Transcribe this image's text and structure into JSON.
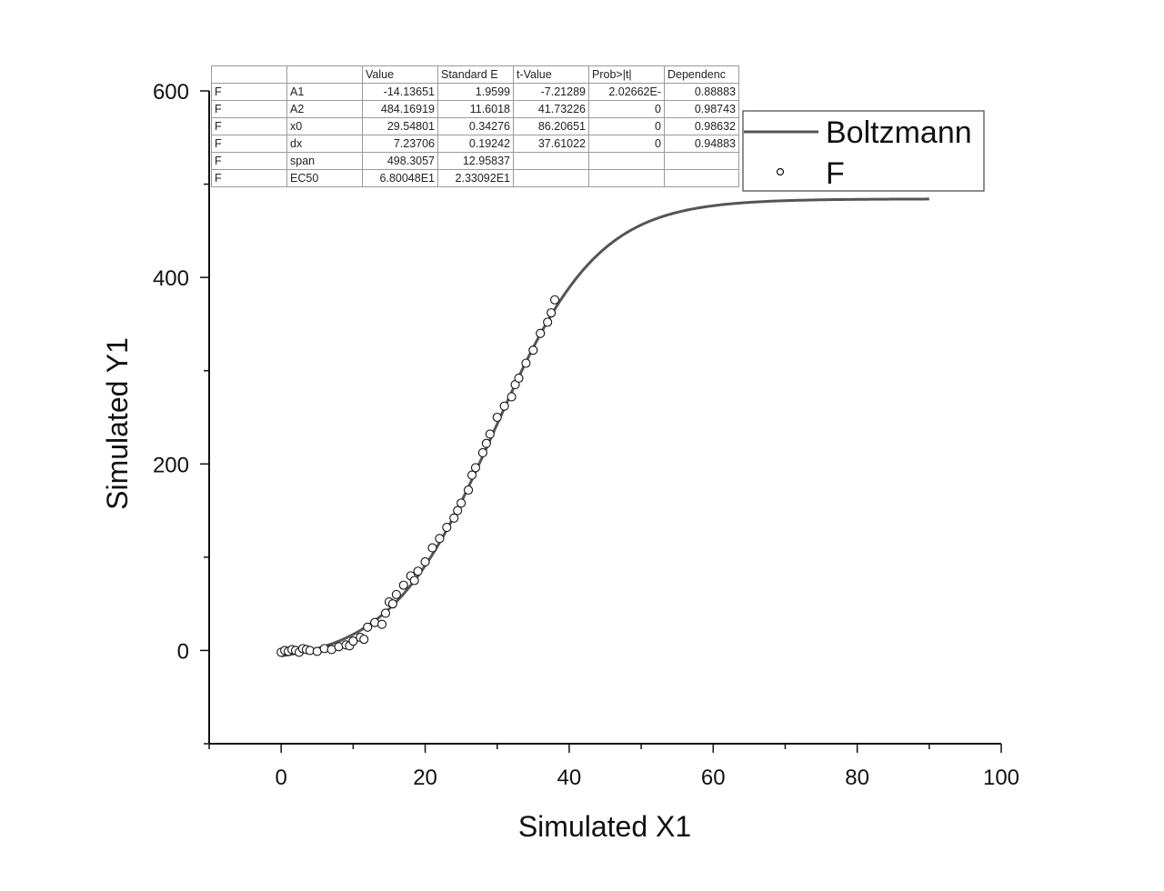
{
  "chart_data": {
    "type": "scatter",
    "xlabel": "Simulated X1",
    "ylabel": "Simulated Y1",
    "xlim": [
      -10,
      100
    ],
    "ylim": [
      -100,
      600
    ],
    "xticks": [
      0,
      20,
      40,
      60,
      80,
      100
    ],
    "yticks": [
      0,
      200,
      400,
      600
    ],
    "grid": false,
    "legend": {
      "position": "top-right",
      "entries": [
        {
          "label": "Boltzmann",
          "marker": "line",
          "color": "#555555"
        },
        {
          "label": "F",
          "marker": "open-circle",
          "color": "#111111"
        }
      ]
    },
    "series": [
      {
        "name": "F",
        "kind": "scatter",
        "x": [
          0,
          0.5,
          1,
          1.5,
          2,
          2.5,
          3,
          3.5,
          4,
          5,
          6,
          7,
          8,
          9,
          9.5,
          10,
          11,
          11.5,
          12,
          13,
          14,
          14.5,
          15,
          15.5,
          16,
          17,
          18,
          18.5,
          19,
          20,
          21,
          22,
          23,
          24,
          24.5,
          25,
          26,
          26.5,
          27,
          28,
          28.5,
          29,
          30,
          31,
          32,
          32.5,
          33,
          34,
          35,
          36,
          37,
          37.5,
          38
        ],
        "y": [
          -2,
          0,
          -1,
          1,
          0,
          -2,
          2,
          1,
          0,
          -1,
          2,
          1,
          4,
          6,
          5,
          10,
          14,
          12,
          25,
          30,
          28,
          40,
          52,
          50,
          60,
          70,
          80,
          75,
          85,
          95,
          110,
          120,
          132,
          142,
          150,
          158,
          172,
          188,
          196,
          212,
          222,
          232,
          250,
          262,
          272,
          285,
          292,
          308,
          322,
          340,
          352,
          362,
          376
        ]
      }
    ],
    "fit": {
      "name": "Boltzmann",
      "kind": "line",
      "model": "Boltzmann",
      "x_range": [
        0,
        90
      ],
      "color": "#555555",
      "parameters": {
        "A1": -14.13651,
        "A2": 484.16919,
        "x0": 29.54801,
        "dx": 7.23706
      }
    },
    "table": {
      "headers": [
        "",
        "",
        "Value",
        "Standard E",
        "t-Value",
        "Prob>|t|",
        "Dependenc"
      ],
      "rows": [
        [
          "F",
          "A1",
          "-14.13651",
          "1.9599",
          "-7.21289",
          "2.02662E-",
          "0.88883"
        ],
        [
          "F",
          "A2",
          "484.16919",
          "11.6018",
          "41.73226",
          "0",
          "0.98743"
        ],
        [
          "F",
          "x0",
          "29.54801",
          "0.34276",
          "86.20651",
          "0",
          "0.98632"
        ],
        [
          "F",
          "dx",
          "7.23706",
          "0.19242",
          "37.61022",
          "0",
          "0.94883"
        ],
        [
          "F",
          "span",
          "498.3057",
          "12.95837",
          "",
          "",
          ""
        ],
        [
          "F",
          "EC50",
          "6.80048E1",
          "2.33092E1",
          "",
          "",
          ""
        ]
      ]
    }
  }
}
